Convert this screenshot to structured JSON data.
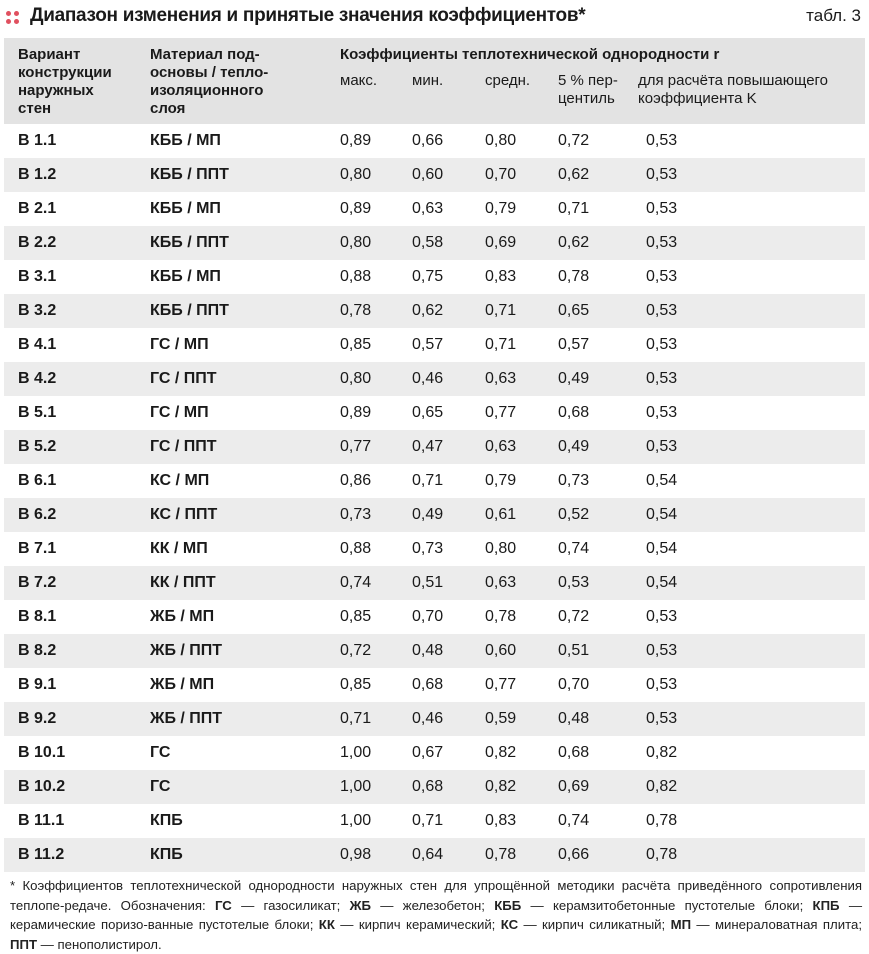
{
  "title": "Диапазон изменения и принятые значения коэффициентов*",
  "table_label": "табл. 3",
  "header": {
    "variant": "Вариант конструкции наружных стен",
    "material": "Материал под-основы / тепло-изоляционного слоя",
    "group": "Коэффициенты теплотехнической однородности r",
    "cols": [
      "макс.",
      "мин.",
      "средн.",
      "5 % пер-центиль",
      "для расчёта повышающего коэффициента K"
    ]
  },
  "rows": [
    {
      "variant": "В 1.1",
      "material": "КББ / МП",
      "max": "0,89",
      "min": "0,66",
      "mean": "0,80",
      "p5": "0,72",
      "calc": "0,53"
    },
    {
      "variant": "В 1.2",
      "material": "КББ / ППТ",
      "max": "0,80",
      "min": "0,60",
      "mean": "0,70",
      "p5": "0,62",
      "calc": "0,53"
    },
    {
      "variant": "В 2.1",
      "material": "КББ / МП",
      "max": "0,89",
      "min": "0,63",
      "mean": "0,79",
      "p5": "0,71",
      "calc": "0,53"
    },
    {
      "variant": "В 2.2",
      "material": "КББ / ППТ",
      "max": "0,80",
      "min": "0,58",
      "mean": "0,69",
      "p5": "0,62",
      "calc": "0,53"
    },
    {
      "variant": "В 3.1",
      "material": "КББ / МП",
      "max": "0,88",
      "min": "0,75",
      "mean": "0,83",
      "p5": "0,78",
      "calc": "0,53"
    },
    {
      "variant": "В 3.2",
      "material": "КББ / ППТ",
      "max": "0,78",
      "min": "0,62",
      "mean": "0,71",
      "p5": "0,65",
      "calc": "0,53"
    },
    {
      "variant": "В 4.1",
      "material": "ГС / МП",
      "max": "0,85",
      "min": "0,57",
      "mean": "0,71",
      "p5": "0,57",
      "calc": "0,53"
    },
    {
      "variant": "В 4.2",
      "material": "ГС / ППТ",
      "max": "0,80",
      "min": "0,46",
      "mean": "0,63",
      "p5": "0,49",
      "calc": "0,53"
    },
    {
      "variant": "В 5.1",
      "material": "ГС / МП",
      "max": "0,89",
      "min": "0,65",
      "mean": "0,77",
      "p5": "0,68",
      "calc": "0,53"
    },
    {
      "variant": "В 5.2",
      "material": "ГС / ППТ",
      "max": "0,77",
      "min": "0,47",
      "mean": "0,63",
      "p5": "0,49",
      "calc": "0,53"
    },
    {
      "variant": "В 6.1",
      "material": "КС / МП",
      "max": "0,86",
      "min": "0,71",
      "mean": "0,79",
      "p5": "0,73",
      "calc": "0,54"
    },
    {
      "variant": "В 6.2",
      "material": "КС / ППТ",
      "max": "0,73",
      "min": "0,49",
      "mean": "0,61",
      "p5": "0,52",
      "calc": "0,54"
    },
    {
      "variant": "В 7.1",
      "material": "КК / МП",
      "max": "0,88",
      "min": "0,73",
      "mean": "0,80",
      "p5": "0,74",
      "calc": "0,54"
    },
    {
      "variant": "В 7.2",
      "material": "КК / ППТ",
      "max": "0,74",
      "min": "0,51",
      "mean": "0,63",
      "p5": "0,53",
      "calc": "0,54"
    },
    {
      "variant": "В 8.1",
      "material": "ЖБ / МП",
      "max": "0,85",
      "min": "0,70",
      "mean": "0,78",
      "p5": "0,72",
      "calc": "0,53"
    },
    {
      "variant": "В 8.2",
      "material": "ЖБ / ППТ",
      "max": "0,72",
      "min": "0,48",
      "mean": "0,60",
      "p5": "0,51",
      "calc": "0,53"
    },
    {
      "variant": "В 9.1",
      "material": "ЖБ / МП",
      "max": "0,85",
      "min": "0,68",
      "mean": "0,77",
      "p5": "0,70",
      "calc": "0,53"
    },
    {
      "variant": "В 9.2",
      "material": "ЖБ / ППТ",
      "max": "0,71",
      "min": "0,46",
      "mean": "0,59",
      "p5": "0,48",
      "calc": "0,53"
    },
    {
      "variant": "В 10.1",
      "material": "ГС",
      "max": "1,00",
      "min": "0,67",
      "mean": "0,82",
      "p5": "0,68",
      "calc": "0,82"
    },
    {
      "variant": "В 10.2",
      "material": "ГС",
      "max": "1,00",
      "min": "0,68",
      "mean": "0,82",
      "p5": "0,69",
      "calc": "0,82"
    },
    {
      "variant": "В 11.1",
      "material": "КПБ",
      "max": "1,00",
      "min": "0,71",
      "mean": "0,83",
      "p5": "0,74",
      "calc": "0,78"
    },
    {
      "variant": "В 11.2",
      "material": "КПБ",
      "max": "0,98",
      "min": "0,64",
      "mean": "0,78",
      "p5": "0,66",
      "calc": "0,78"
    }
  ],
  "footnote": {
    "intro": "* Коэффициентов теплотехнической однородности наружных стен для упрощённой методики расчёта приведённого сопротивления теплопе-редаче. Обозначения: ",
    "defs": [
      {
        "abbr": "ГС",
        "text": " — газосиликат; "
      },
      {
        "abbr": "ЖБ",
        "text": " — железобетон; "
      },
      {
        "abbr": "КББ",
        "text": " — керамзитобетонные пустотелые блоки; "
      },
      {
        "abbr": "КПБ",
        "text": " — керамические поризо-ванные пустотелые блоки; "
      },
      {
        "abbr": "КК",
        "text": " — кирпич керамический; "
      },
      {
        "abbr": "КС",
        "text": " — кирпич силикатный; "
      },
      {
        "abbr": "МП",
        "text": " — минераловатная плита; "
      },
      {
        "abbr": "ППТ",
        "text": " — пенополистирол."
      }
    ]
  },
  "colors": {
    "accent_dots": "#e0505f",
    "header_bg": "#e3e3e3",
    "stripe_bg": "#ececec"
  }
}
